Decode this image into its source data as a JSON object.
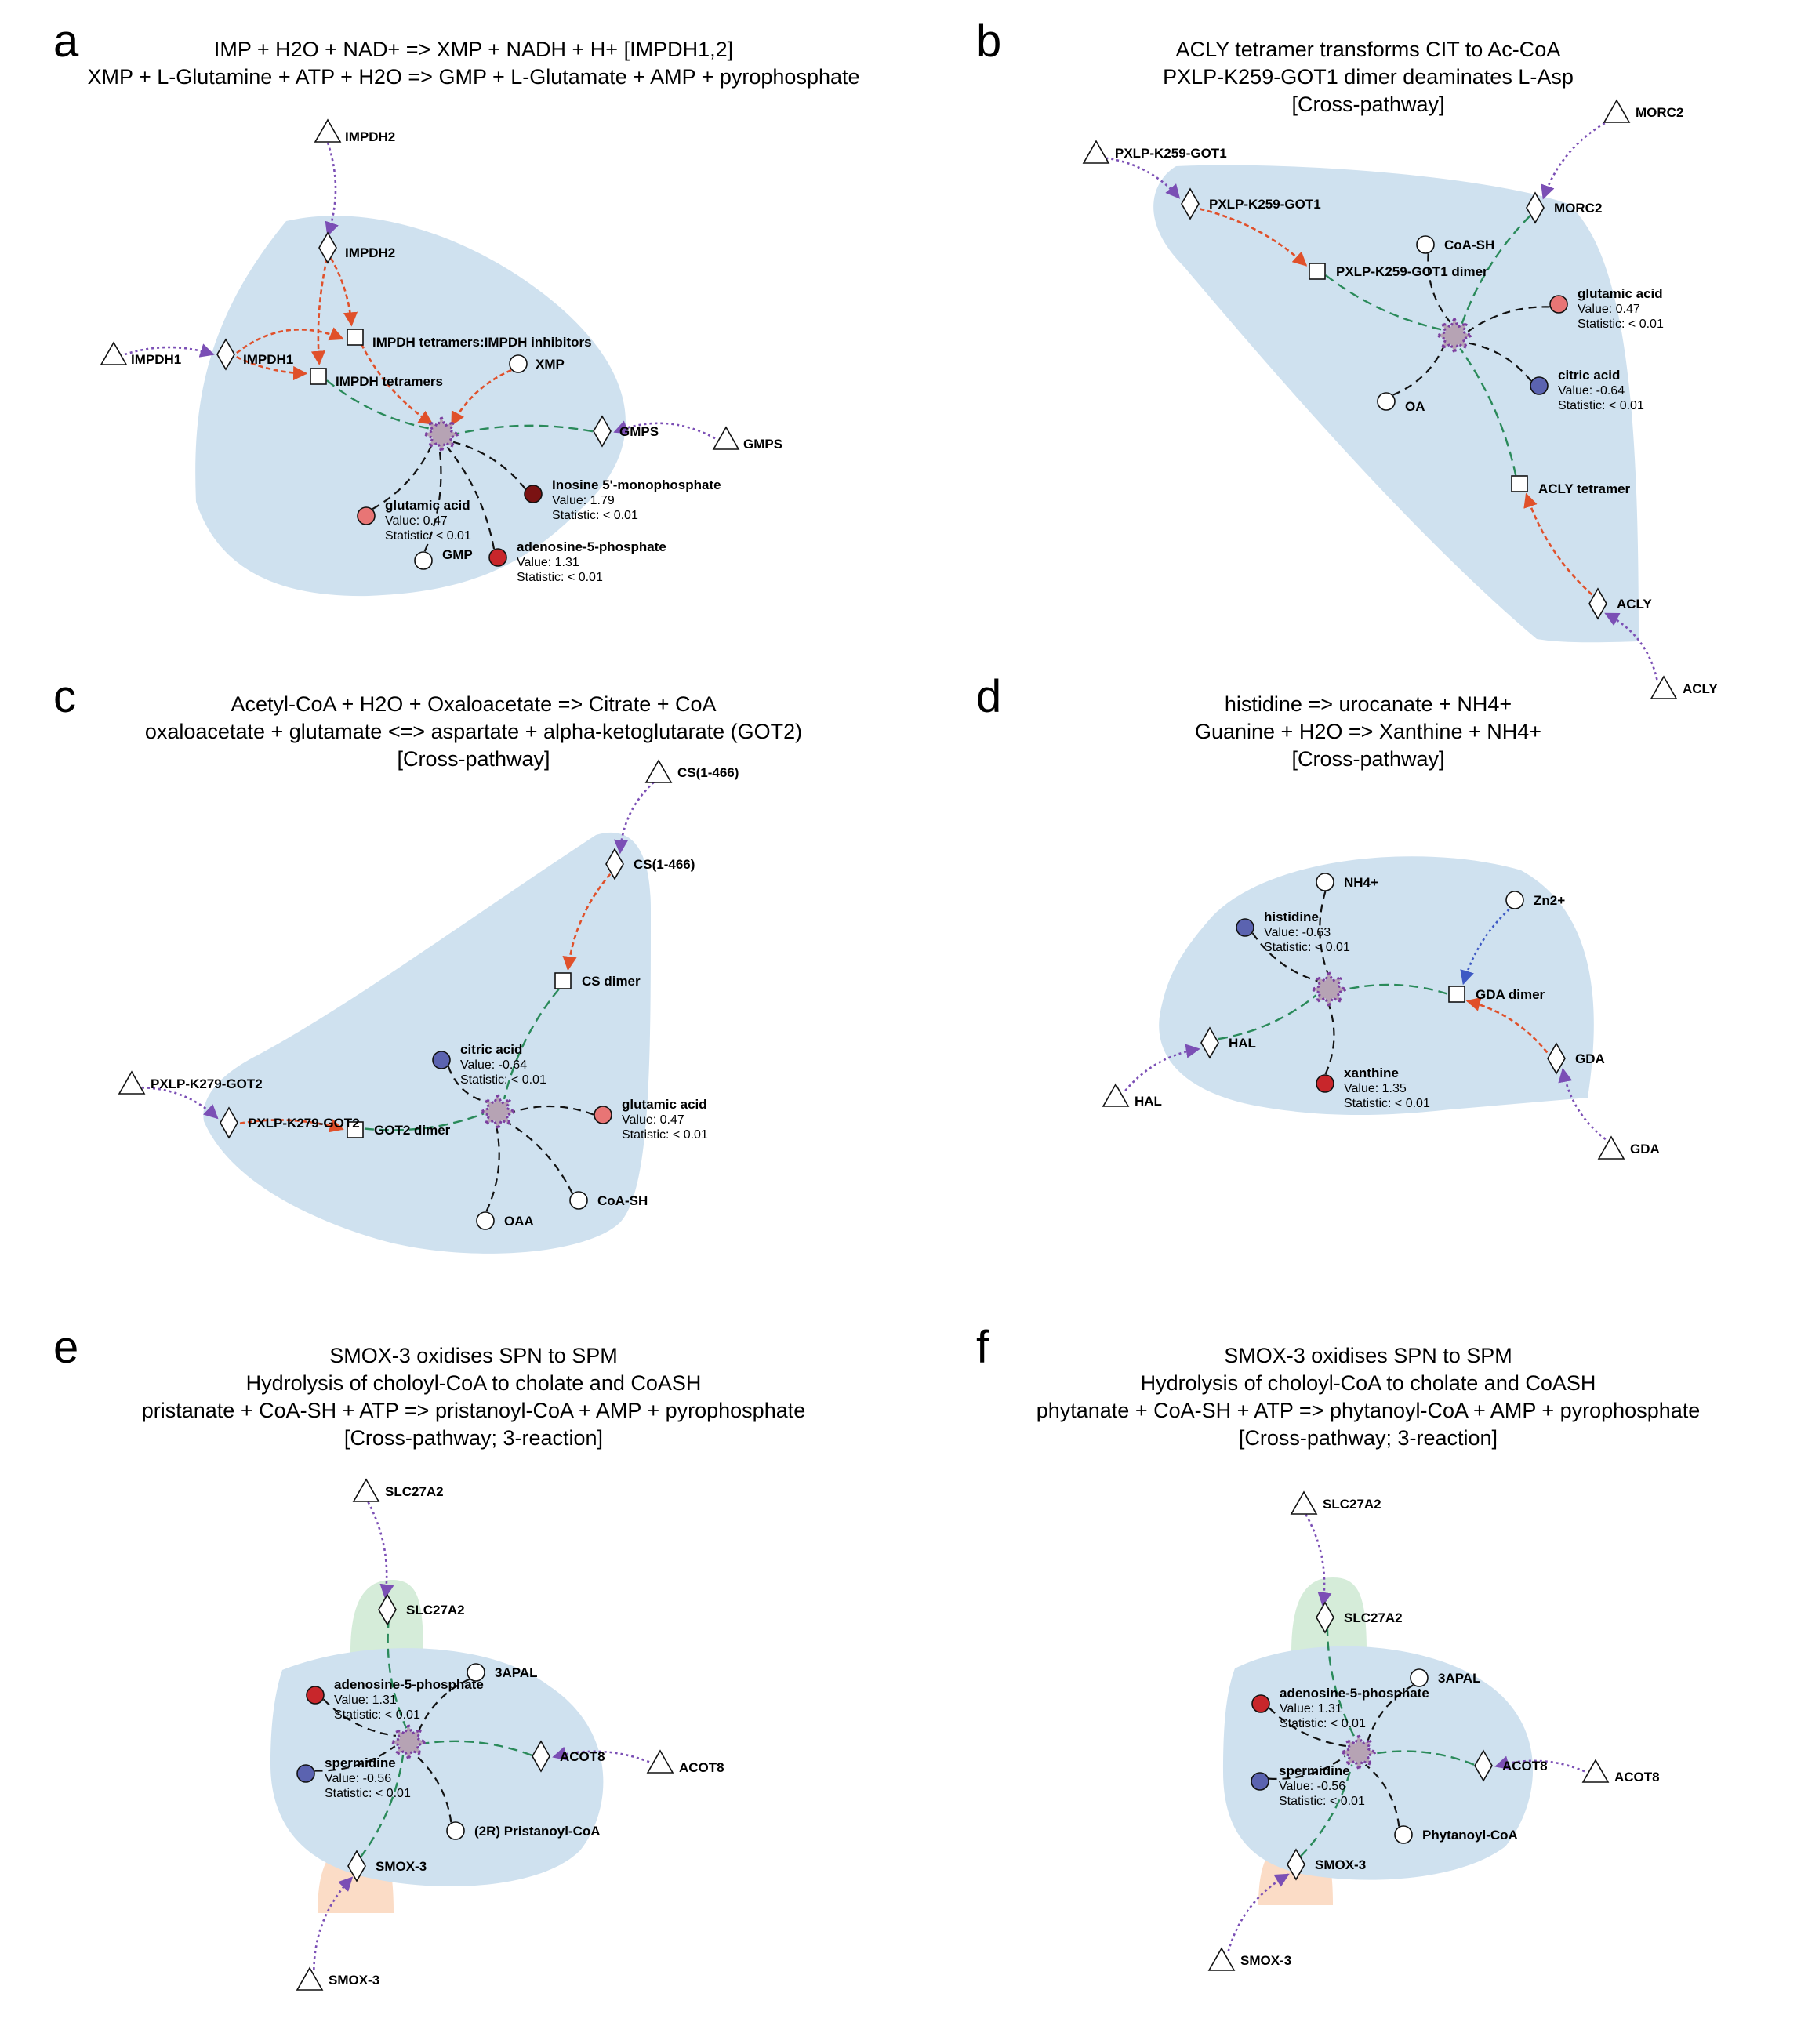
{
  "colors": {
    "hull_blue": "#cfe1ef",
    "hull_green": "#d5ecd9",
    "hull_orange": "#fbdcc6",
    "edge_purple": "#7b4fb5",
    "edge_red": "#e0502a",
    "edge_green": "#2a8a5a",
    "edge_black": "#111111",
    "edge_blue": "#3d59c4",
    "val_dark_red": "#7a1212",
    "val_red": "#c8262b",
    "val_pink": "#e87575",
    "val_blue": "#5b63b0",
    "hub_fill": "#b6a3b4",
    "hub_stroke": "#7b3fa0"
  },
  "panels": [
    {
      "label": "a",
      "title_lines": [
        "IMP + H2O + NAD+ => XMP + NADH + H+ [IMPDH1,2]",
        "XMP + L-Glutamine + ATP + H2O => GMP + L-Glutamate + AMP + pyrophosphate"
      ],
      "nodes": [
        {
          "id": "a_t_impdh2",
          "shape": "triangle",
          "label": "IMPDH2"
        },
        {
          "id": "a_d_impdh2",
          "shape": "diamond",
          "label": "IMPDH2"
        },
        {
          "id": "a_s_inh",
          "shape": "square",
          "label": "IMPDH tetramers:IMPDH inhibitors"
        },
        {
          "id": "a_t_impdh1",
          "shape": "triangle",
          "label": "IMPDH1"
        },
        {
          "id": "a_d_impdh1",
          "shape": "diamond",
          "label": "IMPDH1"
        },
        {
          "id": "a_s_tet",
          "shape": "square",
          "label": "IMPDH tetramers"
        },
        {
          "id": "a_c_xmp",
          "shape": "circle",
          "label": "XMP"
        },
        {
          "id": "a_d_gmps",
          "shape": "diamond",
          "label": "GMPS"
        },
        {
          "id": "a_t_gmps",
          "shape": "triangle",
          "label": "GMPS"
        },
        {
          "id": "a_c_imp",
          "shape": "circle",
          "color": "val_dark_red",
          "label": "Inosine 5'-monophosphate",
          "value": "Value: 1.79",
          "stat": "Statistic: < 0.01"
        },
        {
          "id": "a_c_glu",
          "shape": "circle",
          "color": "val_pink",
          "label": "glutamic acid",
          "value": "Value: 0.47",
          "stat": "Statistic: < 0.01"
        },
        {
          "id": "a_c_amp",
          "shape": "circle",
          "color": "val_red",
          "label": "adenosine-5-phosphate",
          "value": "Value: 1.31",
          "stat": "Statistic: < 0.01"
        },
        {
          "id": "a_c_gmp",
          "shape": "circle",
          "label": "GMP"
        }
      ]
    },
    {
      "label": "b",
      "title_lines": [
        "ACLY tetramer transforms CIT to Ac-CoA",
        "PXLP-K259-GOT1 dimer deaminates L-Asp",
        "[Cross-pathway]"
      ],
      "nodes": [
        {
          "id": "b_t_pxlp",
          "shape": "triangle",
          "label": "PXLP-K259-GOT1"
        },
        {
          "id": "b_d_pxlp",
          "shape": "diamond",
          "label": "PXLP-K259-GOT1"
        },
        {
          "id": "b_t_morc",
          "shape": "triangle",
          "label": "MORC2"
        },
        {
          "id": "b_d_morc",
          "shape": "diamond",
          "label": "MORC2"
        },
        {
          "id": "b_c_coa",
          "shape": "circle",
          "label": "CoA-SH"
        },
        {
          "id": "b_s_pxlp",
          "shape": "square",
          "label": "PXLP-K259-GOT1 dimer"
        },
        {
          "id": "b_c_glu",
          "shape": "circle",
          "color": "val_pink",
          "label": "glutamic acid",
          "value": "Value: 0.47",
          "stat": "Statistic: < 0.01"
        },
        {
          "id": "b_c_cit",
          "shape": "circle",
          "color": "val_blue",
          "label": "citric acid",
          "value": "Value: -0.64",
          "stat": "Statistic: < 0.01"
        },
        {
          "id": "b_c_oa",
          "shape": "circle",
          "label": "OA"
        },
        {
          "id": "b_s_acly",
          "shape": "square",
          "label": "ACLY tetramer"
        },
        {
          "id": "b_d_acly",
          "shape": "diamond",
          "label": "ACLY"
        },
        {
          "id": "b_t_acly",
          "shape": "triangle",
          "label": "ACLY"
        }
      ]
    },
    {
      "label": "c",
      "title_lines": [
        "Acetyl-CoA + H2O + Oxaloacetate => Citrate + CoA",
        "oxaloacetate + glutamate <=> aspartate + alpha-ketoglutarate (GOT2)",
        "[Cross-pathway]"
      ],
      "nodes": [
        {
          "id": "c_t_cs",
          "shape": "triangle",
          "label": "CS(1-466)"
        },
        {
          "id": "c_d_cs",
          "shape": "diamond",
          "label": "CS(1-466)"
        },
        {
          "id": "c_s_cs",
          "shape": "square",
          "label": "CS dimer"
        },
        {
          "id": "c_c_cit",
          "shape": "circle",
          "color": "val_blue",
          "label": "citric acid",
          "value": "Value: -0.64",
          "stat": "Statistic: < 0.01"
        },
        {
          "id": "c_t_pxlp",
          "shape": "triangle",
          "label": "PXLP-K279-GOT2"
        },
        {
          "id": "c_d_pxlp",
          "shape": "diamond",
          "label": "PXLP-K279-GOT2"
        },
        {
          "id": "c_s_got2",
          "shape": "square",
          "label": "GOT2 dimer"
        },
        {
          "id": "c_c_glu",
          "shape": "circle",
          "color": "val_pink",
          "label": "glutamic acid",
          "value": "Value: 0.47",
          "stat": "Statistic: < 0.01"
        },
        {
          "id": "c_c_oaa",
          "shape": "circle",
          "label": "OAA"
        },
        {
          "id": "c_c_coa",
          "shape": "circle",
          "label": "CoA-SH"
        }
      ]
    },
    {
      "label": "d",
      "title_lines": [
        "histidine => urocanate + NH4+",
        "Guanine + H2O => Xanthine + NH4+",
        "[Cross-pathway]"
      ],
      "nodes": [
        {
          "id": "d_c_nh4",
          "shape": "circle",
          "label": "NH4+"
        },
        {
          "id": "d_c_his",
          "shape": "circle",
          "color": "val_blue",
          "label": "histidine",
          "value": "Value: -0.63",
          "stat": "Statistic: < 0.01"
        },
        {
          "id": "d_c_zn",
          "shape": "circle",
          "label": "Zn2+"
        },
        {
          "id": "d_s_gda",
          "shape": "square",
          "label": "GDA dimer"
        },
        {
          "id": "d_d_hal",
          "shape": "diamond",
          "label": "HAL"
        },
        {
          "id": "d_t_hal",
          "shape": "triangle",
          "label": "HAL"
        },
        {
          "id": "d_c_xan",
          "shape": "circle",
          "color": "val_red",
          "label": "xanthine",
          "value": "Value: 1.35",
          "stat": "Statistic: < 0.01"
        },
        {
          "id": "d_d_gda",
          "shape": "diamond",
          "label": "GDA"
        },
        {
          "id": "d_t_gda",
          "shape": "triangle",
          "label": "GDA"
        }
      ]
    },
    {
      "label": "e",
      "title_lines": [
        "SMOX-3 oxidises SPN to SPM",
        "Hydrolysis of choloyl-CoA to cholate and CoASH",
        "pristanate + CoA-SH + ATP => pristanoyl-CoA + AMP + pyrophosphate",
        "[Cross-pathway; 3-reaction]"
      ],
      "nodes": [
        {
          "id": "e_t_slc",
          "shape": "triangle",
          "label": "SLC27A2"
        },
        {
          "id": "e_d_slc",
          "shape": "diamond",
          "label": "SLC27A2"
        },
        {
          "id": "e_c_amp",
          "shape": "circle",
          "color": "val_red",
          "label": "adenosine-5-phosphate",
          "value": "Value: 1.31",
          "stat": "Statistic: < 0.01"
        },
        {
          "id": "e_c_3apal",
          "shape": "circle",
          "label": "3APAL"
        },
        {
          "id": "e_d_acot",
          "shape": "diamond",
          "label": "ACOT8"
        },
        {
          "id": "e_t_acot",
          "shape": "triangle",
          "label": "ACOT8"
        },
        {
          "id": "e_c_spd",
          "shape": "circle",
          "color": "val_blue",
          "label": "spermidine",
          "value": "Value: -0.56",
          "stat": "Statistic: < 0.01"
        },
        {
          "id": "e_c_pris",
          "shape": "circle",
          "label": "(2R) Pristanoyl-CoA"
        },
        {
          "id": "e_d_smox",
          "shape": "diamond",
          "label": "SMOX-3"
        },
        {
          "id": "e_t_smox",
          "shape": "triangle",
          "label": "SMOX-3"
        }
      ]
    },
    {
      "label": "f",
      "title_lines": [
        "SMOX-3 oxidises SPN to SPM",
        "Hydrolysis of choloyl-CoA to cholate and CoASH",
        "phytanate + CoA-SH + ATP => phytanoyl-CoA + AMP + pyrophosphate",
        "[Cross-pathway; 3-reaction]"
      ],
      "nodes": [
        {
          "id": "f_t_slc",
          "shape": "triangle",
          "label": "SLC27A2"
        },
        {
          "id": "f_d_slc",
          "shape": "diamond",
          "label": "SLC27A2"
        },
        {
          "id": "f_c_amp",
          "shape": "circle",
          "color": "val_red",
          "label": "adenosine-5-phosphate",
          "value": "Value: 1.31",
          "stat": "Statistic: < 0.01"
        },
        {
          "id": "f_c_3apal",
          "shape": "circle",
          "label": "3APAL"
        },
        {
          "id": "f_d_acot",
          "shape": "diamond",
          "label": "ACOT8"
        },
        {
          "id": "f_t_acot",
          "shape": "triangle",
          "label": "ACOT8"
        },
        {
          "id": "f_c_spd",
          "shape": "circle",
          "color": "val_blue",
          "label": "spermidine",
          "value": "Value: -0.56",
          "stat": "Statistic: < 0.01"
        },
        {
          "id": "f_c_phyt",
          "shape": "circle",
          "label": "Phytanoyl-CoA"
        },
        {
          "id": "f_d_smox",
          "shape": "diamond",
          "label": "SMOX-3"
        },
        {
          "id": "f_t_smox",
          "shape": "triangle",
          "label": "SMOX-3"
        }
      ]
    }
  ]
}
